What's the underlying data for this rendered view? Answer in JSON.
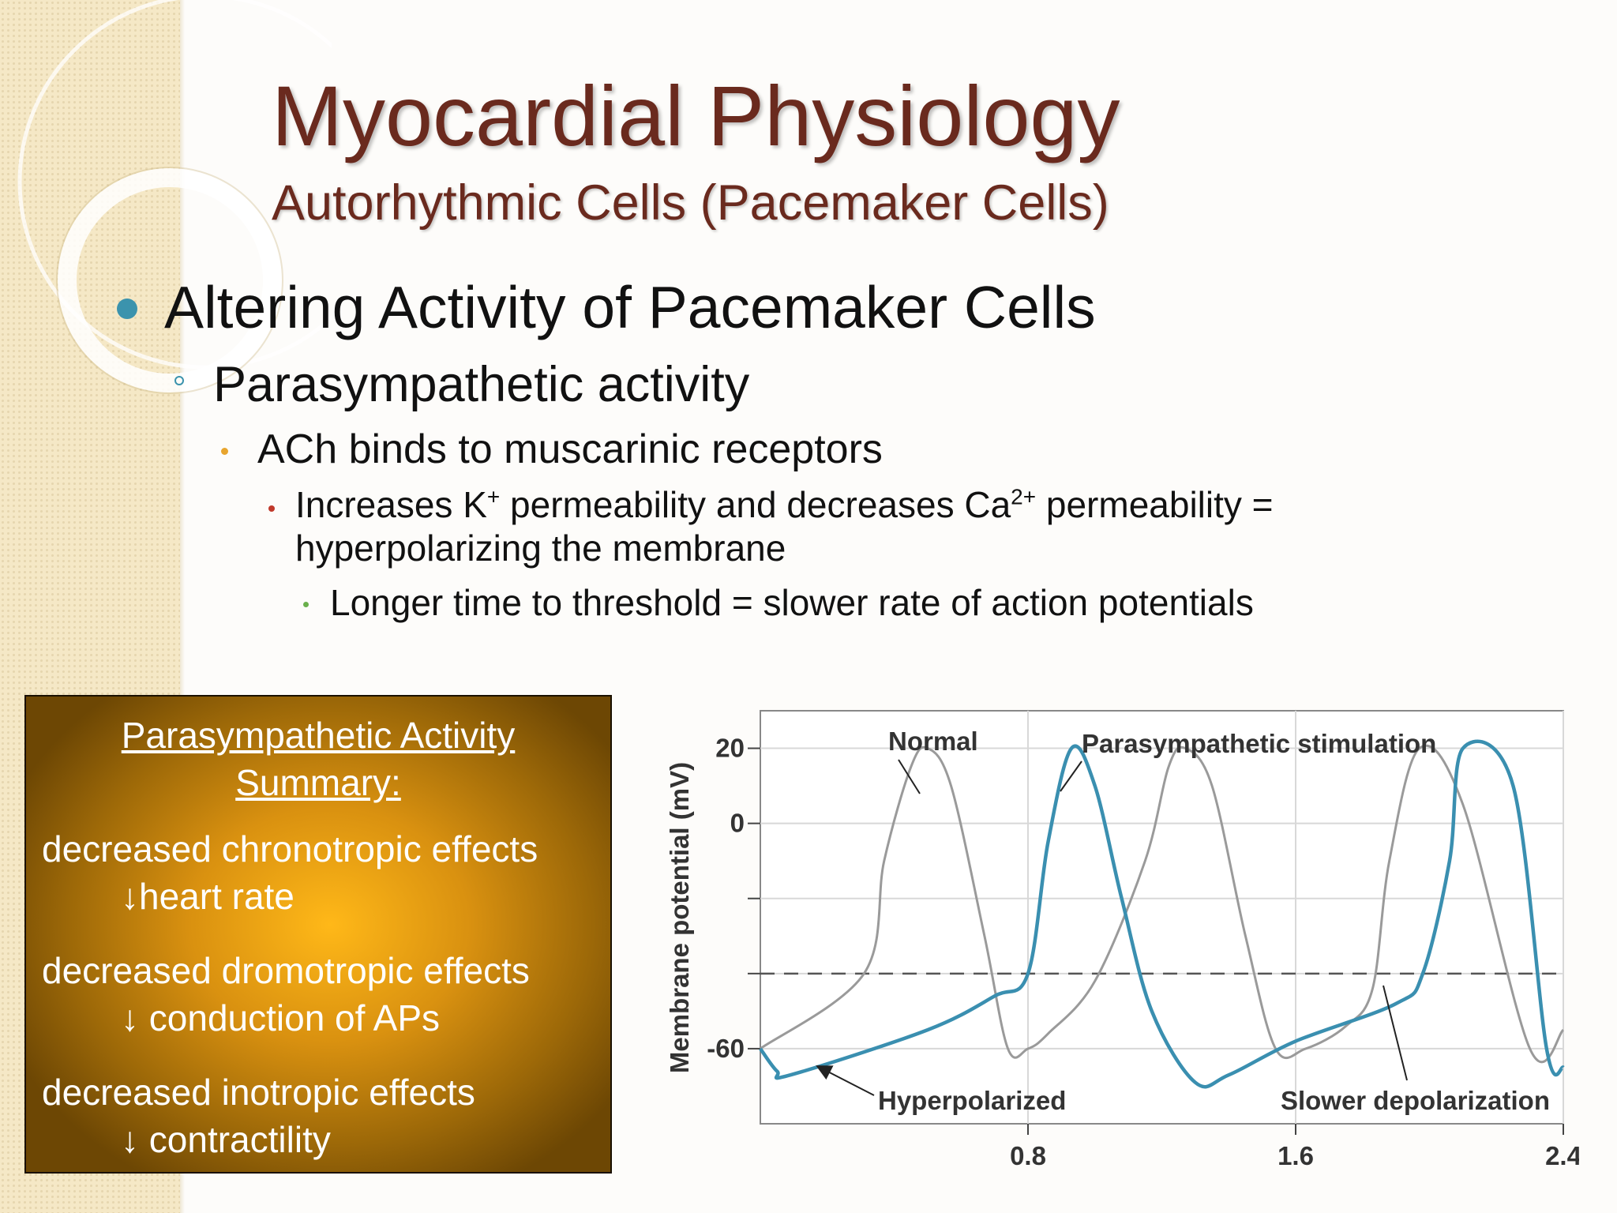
{
  "slide": {
    "title": "Myocardial Physiology",
    "subtitle": "Autorhythmic Cells (Pacemaker Cells)",
    "bullet1": "Altering Activity of Pacemaker Cells",
    "bullet2": "Parasympathetic activity",
    "bullet3": "ACh binds to muscarinic receptors",
    "bullet4": {
      "part1": "Increases K",
      "sup1": "+",
      "part2": " permeability and decreases Ca",
      "sup2": "2+",
      "part3": " permeability = hyperpolarizing the membrane"
    },
    "bullet5": "Longer time to threshold = slower rate of action potentials",
    "colors": {
      "title": "#6a2a1e",
      "accent": "#3b93ad",
      "summary_gold": "#ffb818"
    }
  },
  "summary": {
    "heading_line1": "Parasympathetic Activity",
    "heading_line2": "Summary:",
    "item1": "decreased chronotropic effects",
    "item1_sub": "↓heart rate",
    "item2": "decreased dromotropic effects",
    "item2_sub": "↓ conduction of APs",
    "item3": "decreased inotropic effects",
    "item3_sub": "↓ contractility"
  },
  "chart_data": {
    "type": "line",
    "ylabel": "Membrane potential (mV)",
    "xlabel": "",
    "xlim": [
      0,
      2.4
    ],
    "ylim": [
      -80,
      30
    ],
    "x_ticks": [
      0.8,
      1.6,
      2.4
    ],
    "y_ticks": [
      20,
      0,
      -60
    ],
    "grid": true,
    "threshold_mV": -40,
    "annotations": [
      "Normal",
      "Parasympathetic stimulation",
      "Hyperpolarized",
      "Slower depolarization"
    ],
    "series": [
      {
        "color": "#9a9a9a",
        "x": [
          0,
          0.31,
          0.37,
          0.45,
          0.5,
          0.57,
          0.67,
          0.74,
          0.8,
          0.86,
          1.0,
          1.15,
          1.22,
          1.27,
          1.35,
          1.45,
          1.54,
          1.63,
          1.75,
          1.83,
          1.88,
          1.97,
          2.1,
          2.3,
          2.4
        ],
        "y": [
          -60,
          -40,
          -10,
          15,
          20,
          10,
          -30,
          -60,
          -60,
          -56,
          -42,
          -10,
          15,
          20,
          10,
          -30,
          -60,
          -60,
          -54,
          -44,
          -10,
          20,
          5,
          -60,
          -55
        ]
      },
      {
        "color": "#3a8fb0",
        "x": [
          0,
          0.05,
          0.09,
          0.5,
          0.7,
          0.8,
          0.86,
          0.93,
          1.0,
          1.08,
          1.17,
          1.3,
          1.4,
          1.6,
          1.9,
          1.98,
          2.06,
          2.1,
          2.25,
          2.35,
          2.4
        ],
        "y": [
          -60,
          -66,
          -67,
          -55,
          -46,
          -40,
          -5,
          20,
          10,
          -20,
          -50,
          -69,
          -67,
          -58,
          -48,
          -40,
          -10,
          20,
          10,
          -60,
          -65
        ]
      }
    ]
  }
}
